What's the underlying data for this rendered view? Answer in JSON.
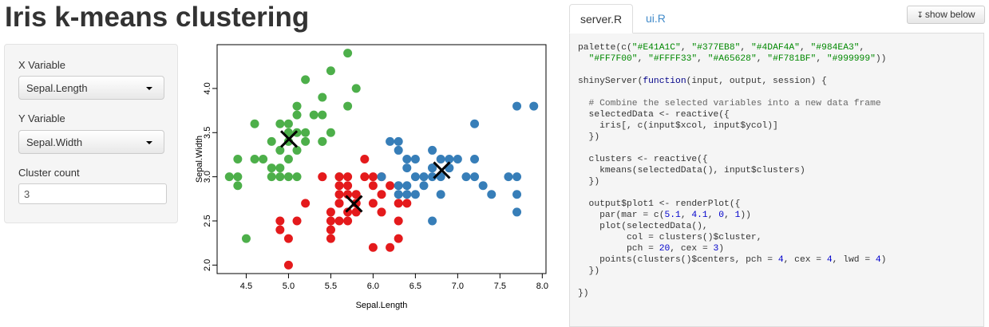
{
  "page": {
    "title": "Iris k-means clustering"
  },
  "sidebar": {
    "x_variable": {
      "label": "X Variable",
      "selected": "Sepal.Length"
    },
    "y_variable": {
      "label": "Y Variable",
      "selected": "Sepal.Width"
    },
    "cluster_count": {
      "label": "Cluster count",
      "value": "3"
    }
  },
  "tabs": [
    {
      "label": "server.R",
      "active": true
    },
    {
      "label": "ui.R",
      "active": false
    }
  ],
  "show_below_button": {
    "label": "show below",
    "icon": "arrow-down-icon"
  },
  "code": {
    "lines": [
      "palette(c(\"#E41A1C\", \"#377EB8\", \"#4DAF4A\", \"#984EA3\",",
      "  \"#FF7F00\", \"#FFFF33\", \"#A65628\", \"#F781BF\", \"#999999\"))",
      "",
      "shinyServer(function(input, output, session) {",
      "",
      "  # Combine the selected variables into a new data frame",
      "  selectedData <- reactive({",
      "    iris[, c(input$xcol, input$ycol)]",
      "  })",
      "",
      "  clusters <- reactive({",
      "    kmeans(selectedData(), input$clusters)",
      "  })",
      "",
      "  output$plot1 <- renderPlot({",
      "    par(mar = c(5.1, 4.1, 0, 1))",
      "    plot(selectedData(),",
      "         col = clusters()$cluster,",
      "         pch = 20, cex = 3)",
      "    points(clusters()$centers, pch = 4, cex = 4, lwd = 4)",
      "  })",
      "",
      "})"
    ]
  },
  "colors": {
    "cluster_1": "#E41A1C",
    "cluster_2": "#377EB8",
    "cluster_3": "#4DAF4A",
    "link": "#428bca"
  },
  "chart_data": {
    "type": "scatter",
    "xlabel": "Sepal.Length",
    "ylabel": "Sepal.Width",
    "xlim": [
      4.3,
      7.9
    ],
    "ylim": [
      2.0,
      4.4
    ],
    "xticks": [
      "4.5",
      "5.0",
      "5.5",
      "6.0",
      "6.5",
      "7.0",
      "7.5",
      "8.0"
    ],
    "yticks": [
      "2.0",
      "2.5",
      "3.0",
      "3.5",
      "4.0"
    ],
    "series": [
      {
        "color": "#4DAF4A",
        "points": [
          [
            5.7,
            4.4
          ],
          [
            5.5,
            4.2
          ],
          [
            5.8,
            4.0
          ],
          [
            5.2,
            4.1
          ],
          [
            5.4,
            3.9
          ],
          [
            5.7,
            3.8
          ],
          [
            5.1,
            3.8
          ],
          [
            5.4,
            3.7
          ],
          [
            5.0,
            3.6
          ],
          [
            4.6,
            3.6
          ],
          [
            5.1,
            3.7
          ],
          [
            5.3,
            3.7
          ],
          [
            5.5,
            3.5
          ],
          [
            5.2,
            3.5
          ],
          [
            4.9,
            3.6
          ],
          [
            5.0,
            3.5
          ],
          [
            5.1,
            3.5
          ],
          [
            4.8,
            3.4
          ],
          [
            5.4,
            3.4
          ],
          [
            5.0,
            3.4
          ],
          [
            4.9,
            3.3
          ],
          [
            5.1,
            3.3
          ],
          [
            4.7,
            3.2
          ],
          [
            4.6,
            3.2
          ],
          [
            5.0,
            3.2
          ],
          [
            5.4,
            3.4
          ],
          [
            4.4,
            3.2
          ],
          [
            4.5,
            2.3
          ],
          [
            4.4,
            2.9
          ],
          [
            4.4,
            3.0
          ],
          [
            4.3,
            3.0
          ],
          [
            4.8,
            3.1
          ],
          [
            4.9,
            3.1
          ],
          [
            4.8,
            3.0
          ],
          [
            4.9,
            3.0
          ],
          [
            5.0,
            3.0
          ],
          [
            5.2,
            3.4
          ],
          [
            5.6,
            3.0
          ],
          [
            5.1,
            3.0
          ]
        ]
      },
      {
        "color": "#E41A1C",
        "points": [
          [
            5.0,
            2.0
          ],
          [
            4.9,
            2.4
          ],
          [
            4.9,
            2.5
          ],
          [
            5.0,
            2.3
          ],
          [
            5.1,
            2.5
          ],
          [
            5.2,
            2.7
          ],
          [
            5.4,
            3.0
          ],
          [
            5.5,
            2.4
          ],
          [
            5.5,
            2.5
          ],
          [
            5.5,
            2.3
          ],
          [
            5.5,
            2.6
          ],
          [
            5.6,
            2.5
          ],
          [
            5.6,
            2.7
          ],
          [
            5.6,
            2.8
          ],
          [
            5.6,
            2.9
          ],
          [
            5.6,
            3.0
          ],
          [
            5.7,
            2.6
          ],
          [
            5.7,
            2.5
          ],
          [
            5.7,
            2.9
          ],
          [
            5.7,
            2.8
          ],
          [
            5.7,
            3.0
          ],
          [
            5.8,
            2.7
          ],
          [
            5.8,
            2.6
          ],
          [
            5.8,
            2.8
          ],
          [
            5.9,
            3.0
          ],
          [
            5.9,
            3.2
          ],
          [
            6.0,
            2.2
          ],
          [
            6.0,
            2.7
          ],
          [
            6.0,
            2.9
          ],
          [
            6.0,
            3.0
          ],
          [
            6.1,
            2.6
          ],
          [
            6.1,
            2.8
          ],
          [
            6.1,
            3.0
          ],
          [
            6.2,
            2.2
          ],
          [
            6.2,
            2.9
          ],
          [
            6.3,
            2.3
          ],
          [
            6.3,
            2.5
          ],
          [
            6.3,
            2.7
          ],
          [
            6.4,
            2.7
          ],
          [
            5.5,
            2.4
          ],
          [
            5.6,
            2.7
          ],
          [
            5.8,
            2.7
          ],
          [
            5.4,
            3.0
          ]
        ]
      },
      {
        "color": "#377EB8",
        "points": [
          [
            6.2,
            3.4
          ],
          [
            6.3,
            3.3
          ],
          [
            6.3,
            2.9
          ],
          [
            6.4,
            3.2
          ],
          [
            6.4,
            2.9
          ],
          [
            6.5,
            3.0
          ],
          [
            6.5,
            3.2
          ],
          [
            6.5,
            2.8
          ],
          [
            6.6,
            3.0
          ],
          [
            6.7,
            3.3
          ],
          [
            6.7,
            3.1
          ],
          [
            6.7,
            3.0
          ],
          [
            6.7,
            2.5
          ],
          [
            6.8,
            3.2
          ],
          [
            6.8,
            2.8
          ],
          [
            6.9,
            3.1
          ],
          [
            6.9,
            3.2
          ],
          [
            7.0,
            3.2
          ],
          [
            7.1,
            3.0
          ],
          [
            7.2,
            3.6
          ],
          [
            7.2,
            3.2
          ],
          [
            7.2,
            3.0
          ],
          [
            7.3,
            2.9
          ],
          [
            7.4,
            2.8
          ],
          [
            7.6,
            3.0
          ],
          [
            7.7,
            3.8
          ],
          [
            7.7,
            3.0
          ],
          [
            7.7,
            2.8
          ],
          [
            7.7,
            2.6
          ],
          [
            7.9,
            3.8
          ],
          [
            6.1,
            3.0
          ],
          [
            6.3,
            2.8
          ],
          [
            6.4,
            2.8
          ],
          [
            6.6,
            2.9
          ],
          [
            6.8,
            3.0
          ],
          [
            6.3,
            3.4
          ],
          [
            6.4,
            3.1
          ],
          [
            6.9,
            3.1
          ],
          [
            6.7,
            3.1
          ]
        ]
      }
    ],
    "centers": [
      [
        5.006,
        3.428
      ],
      [
        5.774,
        2.694
      ],
      [
        6.812,
        3.074
      ]
    ]
  }
}
